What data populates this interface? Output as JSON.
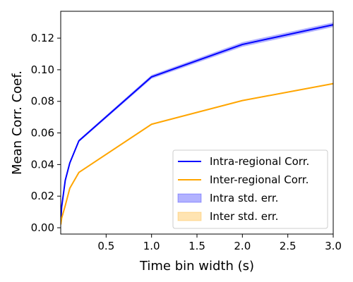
{
  "chart_data": {
    "type": "line",
    "title": "",
    "xlabel": "Time bin width (s)",
    "ylabel": "Mean Corr. Coef.",
    "xlim": [
      0.0,
      3.0
    ],
    "ylim": [
      -0.004,
      0.137
    ],
    "x_ticks": [
      0.5,
      1.0,
      1.5,
      2.0,
      2.5,
      3.0
    ],
    "x_tick_labels": [
      "0.5",
      "1.0",
      "1.5",
      "2.0",
      "2.5",
      "3.0"
    ],
    "y_ticks": [
      0.0,
      0.02,
      0.04,
      0.06,
      0.08,
      0.1,
      0.12
    ],
    "y_tick_labels": [
      "0.00",
      "0.02",
      "0.04",
      "0.06",
      "0.08",
      "0.10",
      "0.12"
    ],
    "grid": false,
    "legend_position": "lower-right",
    "x": [
      0.001,
      0.01,
      0.05,
      0.1,
      0.2,
      1.0,
      2.0,
      3.0
    ],
    "series": [
      {
        "name": "Intra-regional Corr.",
        "kind": "line",
        "color": "#0000ff",
        "values": [
          0.004,
          0.013,
          0.03,
          0.041,
          0.055,
          0.0955,
          0.116,
          0.1285
        ]
      },
      {
        "name": "Inter-regional Corr.",
        "kind": "line",
        "color": "#ffa500",
        "values": [
          0.002,
          0.006,
          0.014,
          0.025,
          0.035,
          0.0655,
          0.0805,
          0.0912
        ]
      }
    ],
    "bands": [
      {
        "name": "Intra std. err.",
        "color": "#0000ff",
        "lower": [
          0.0035,
          0.0125,
          0.0295,
          0.0405,
          0.0542,
          0.0943,
          0.1145,
          0.127
        ],
        "upper": [
          0.0045,
          0.0135,
          0.0305,
          0.0415,
          0.0558,
          0.0967,
          0.1175,
          0.13
        ]
      },
      {
        "name": "Inter std. err.",
        "color": "#ffa500",
        "lower": [
          0.0018,
          0.0057,
          0.0137,
          0.0247,
          0.0346,
          0.0651,
          0.0801,
          0.0908
        ],
        "upper": [
          0.0022,
          0.0063,
          0.0143,
          0.0253,
          0.0354,
          0.0659,
          0.0809,
          0.0916
        ]
      }
    ]
  }
}
